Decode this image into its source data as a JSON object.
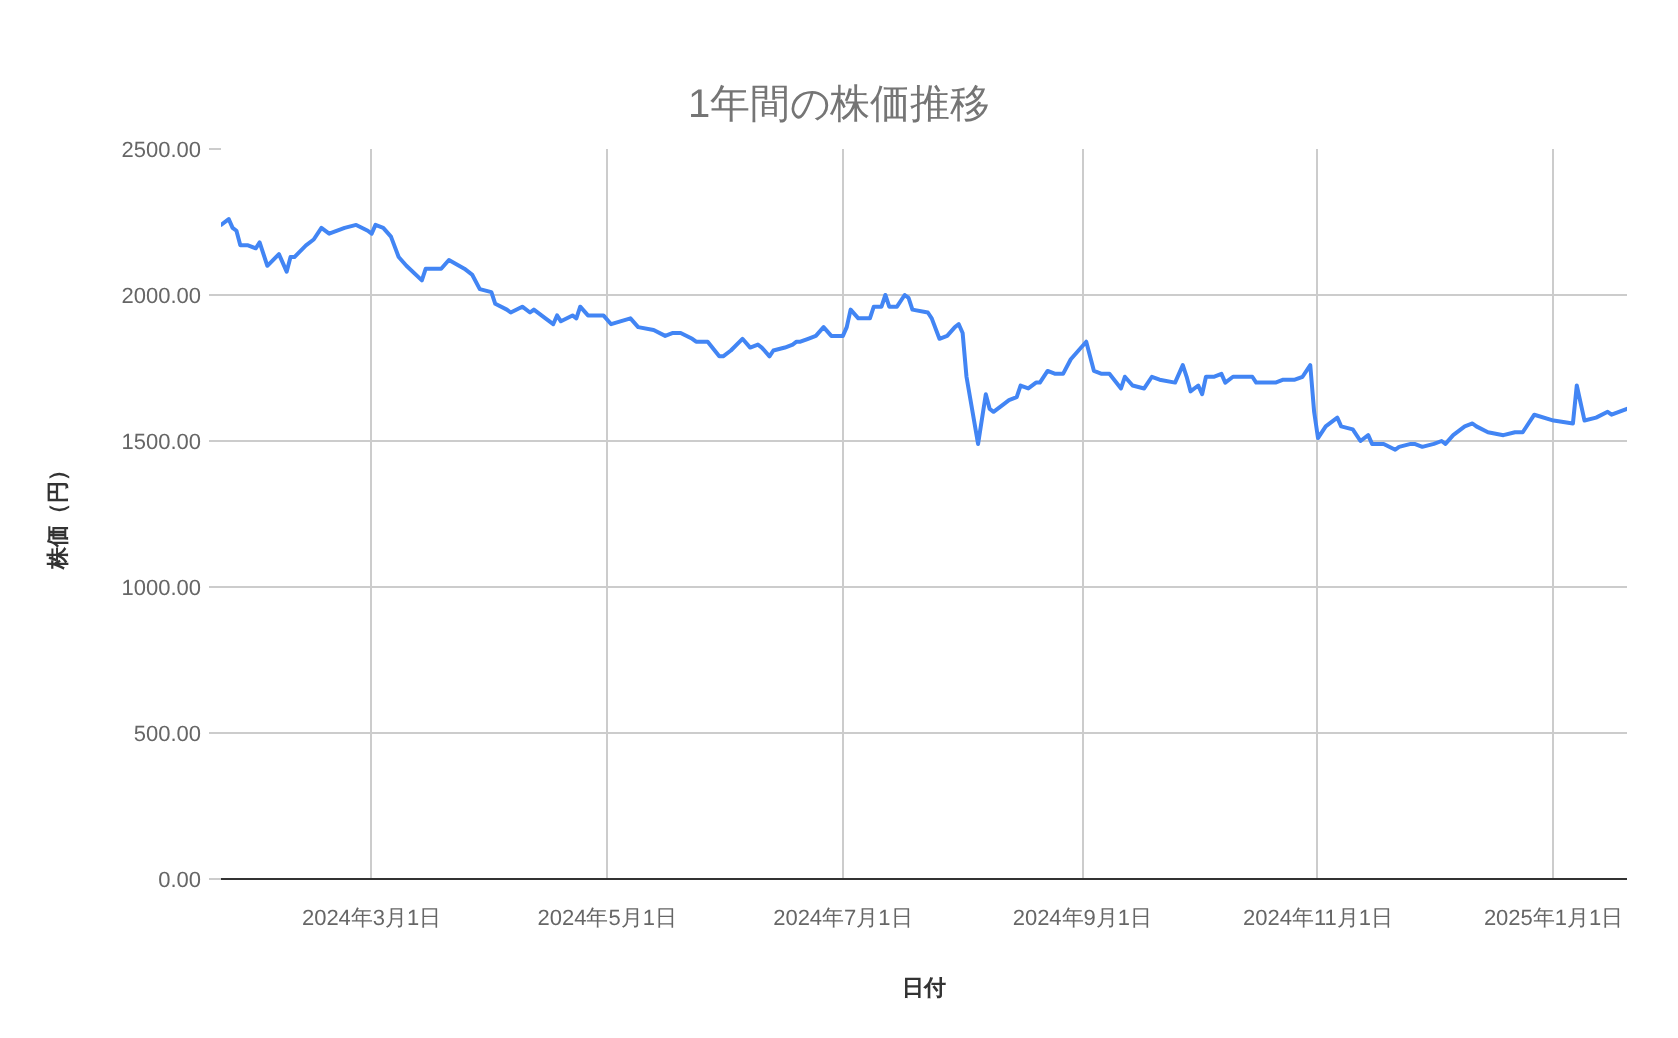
{
  "chart_data": {
    "type": "line",
    "title": "1年間の株価推移",
    "xlabel": "日付",
    "ylabel": "株価（円）",
    "x": [
      "2024-01-22",
      "2024-01-24",
      "2024-01-25",
      "2024-01-26",
      "2024-01-27",
      "2024-01-29",
      "2024-01-31",
      "2024-02-01",
      "2024-02-03",
      "2024-02-06",
      "2024-02-08",
      "2024-02-09",
      "2024-02-10",
      "2024-02-13",
      "2024-02-15",
      "2024-02-17",
      "2024-02-19",
      "2024-02-23",
      "2024-02-26",
      "2024-02-29",
      "2024-03-01",
      "2024-03-02",
      "2024-03-04",
      "2024-03-06",
      "2024-03-08",
      "2024-03-10",
      "2024-03-14",
      "2024-03-15",
      "2024-03-19",
      "2024-03-21",
      "2024-03-25",
      "2024-03-27",
      "2024-03-29",
      "2024-04-01",
      "2024-04-02",
      "2024-04-05",
      "2024-04-06",
      "2024-04-09",
      "2024-04-11",
      "2024-04-12",
      "2024-04-15",
      "2024-04-17",
      "2024-04-18",
      "2024-04-19",
      "2024-04-22",
      "2024-04-23",
      "2024-04-24",
      "2024-04-26",
      "2024-04-30",
      "2024-05-02",
      "2024-05-07",
      "2024-05-09",
      "2024-05-13",
      "2024-05-16",
      "2024-05-18",
      "2024-05-20",
      "2024-05-23",
      "2024-05-24",
      "2024-05-26",
      "2024-05-27",
      "2024-05-30",
      "2024-05-31",
      "2024-06-02",
      "2024-06-05",
      "2024-06-07",
      "2024-06-09",
      "2024-06-10",
      "2024-06-12",
      "2024-06-13",
      "2024-06-16",
      "2024-06-18",
      "2024-06-19",
      "2024-06-20",
      "2024-06-22",
      "2024-06-24",
      "2024-06-26",
      "2024-06-28",
      "2024-07-01",
      "2024-07-02",
      "2024-07-03",
      "2024-07-05",
      "2024-07-08",
      "2024-07-09",
      "2024-07-11",
      "2024-07-12",
      "2024-07-13",
      "2024-07-15",
      "2024-07-17",
      "2024-07-18",
      "2024-07-19",
      "2024-07-23",
      "2024-07-24",
      "2024-07-26",
      "2024-07-28",
      "2024-07-30",
      "2024-07-31",
      "2024-08-01",
      "2024-08-02",
      "2024-08-05",
      "2024-08-07",
      "2024-08-08",
      "2024-08-09",
      "2024-08-12",
      "2024-08-13",
      "2024-08-15",
      "2024-08-16",
      "2024-08-18",
      "2024-08-20",
      "2024-08-21",
      "2024-08-23",
      "2024-08-25",
      "2024-08-27",
      "2024-08-29",
      "2024-08-31",
      "2024-09-02",
      "2024-09-04",
      "2024-09-06",
      "2024-09-08",
      "2024-09-11",
      "2024-09-12",
      "2024-09-14",
      "2024-09-17",
      "2024-09-19",
      "2024-09-21",
      "2024-09-25",
      "2024-09-27",
      "2024-09-28",
      "2024-09-29",
      "2024-10-01",
      "2024-10-02",
      "2024-10-03",
      "2024-10-05",
      "2024-10-07",
      "2024-10-08",
      "2024-10-10",
      "2024-10-15",
      "2024-10-16",
      "2024-10-21",
      "2024-10-23",
      "2024-10-26",
      "2024-10-28",
      "2024-10-30",
      "2024-10-31",
      "2024-11-01",
      "2024-11-03",
      "2024-11-06",
      "2024-11-07",
      "2024-11-10",
      "2024-11-12",
      "2024-11-14",
      "2024-11-15",
      "2024-11-18",
      "2024-11-21",
      "2024-11-22",
      "2024-11-25",
      "2024-11-26",
      "2024-11-28",
      "2024-12-01",
      "2024-12-03",
      "2024-12-04",
      "2024-12-06",
      "2024-12-09",
      "2024-12-11",
      "2024-12-12",
      "2024-12-15",
      "2024-12-19",
      "2024-12-22",
      "2024-12-24",
      "2024-12-27",
      "2025-01-01",
      "2025-01-06",
      "2025-01-07",
      "2025-01-09",
      "2025-01-12",
      "2025-01-15",
      "2025-01-16",
      "2025-01-20"
    ],
    "series": [
      {
        "color": "#4285f4",
        "values": [
          2240,
          2260,
          2230,
          2220,
          2170,
          2170,
          2160,
          2180,
          2100,
          2140,
          2080,
          2130,
          2130,
          2170,
          2190,
          2230,
          2210,
          2230,
          2240,
          2220,
          2210,
          2240,
          2230,
          2200,
          2130,
          2100,
          2050,
          2090,
          2090,
          2120,
          2090,
          2070,
          2020,
          2010,
          1970,
          1950,
          1940,
          1960,
          1940,
          1950,
          1920,
          1900,
          1930,
          1910,
          1930,
          1920,
          1960,
          1930,
          1930,
          1900,
          1920,
          1890,
          1880,
          1860,
          1870,
          1870,
          1850,
          1840,
          1840,
          1840,
          1790,
          1790,
          1810,
          1850,
          1820,
          1830,
          1820,
          1790,
          1810,
          1820,
          1830,
          1840,
          1840,
          1850,
          1860,
          1890,
          1860,
          1860,
          1890,
          1950,
          1920,
          1920,
          1960,
          1960,
          2000,
          1960,
          1960,
          2000,
          1990,
          1950,
          1940,
          1920,
          1850,
          1860,
          1890,
          1900,
          1870,
          1720,
          1490,
          1660,
          1610,
          1600,
          1630,
          1640,
          1650,
          1690,
          1680,
          1700,
          1700,
          1740,
          1730,
          1730,
          1780,
          1810,
          1840,
          1740,
          1730,
          1730,
          1680,
          1720,
          1690,
          1680,
          1720,
          1710,
          1700,
          1760,
          1720,
          1670,
          1690,
          1660,
          1720,
          1720,
          1730,
          1700,
          1720,
          1720,
          1700,
          1700,
          1710,
          1710,
          1720,
          1760,
          1600,
          1510,
          1550,
          1580,
          1550,
          1540,
          1500,
          1520,
          1490,
          1490,
          1470,
          1480,
          1490,
          1490,
          1480,
          1490,
          1500,
          1490,
          1520,
          1550,
          1560,
          1550,
          1530,
          1520,
          1530,
          1530,
          1590,
          1570,
          1560,
          1690,
          1570,
          1580,
          1600,
          1590,
          1610
        ]
      }
    ],
    "xlim": [
      "2024-01-22",
      "2025-01-20"
    ],
    "xticks": [
      {
        "value": "2024-03-01",
        "label": "2024年3月1日"
      },
      {
        "value": "2024-05-01",
        "label": "2024年5月1日"
      },
      {
        "value": "2024-07-01",
        "label": "2024年7月1日"
      },
      {
        "value": "2024-09-01",
        "label": "2024年9月1日"
      },
      {
        "value": "2024-11-01",
        "label": "2024年11月1日"
      },
      {
        "value": "2025-01-01",
        "label": "2025年1月1日"
      }
    ],
    "ylim": [
      0,
      2500
    ],
    "yticks": [
      {
        "value": 0,
        "label": "0.00"
      },
      {
        "value": 500,
        "label": "500.00"
      },
      {
        "value": 1000,
        "label": "1000.00"
      },
      {
        "value": 1500,
        "label": "1500.00"
      },
      {
        "value": 2000,
        "label": "2000.00"
      },
      {
        "value": 2500,
        "label": "2500.00"
      }
    ],
    "grid": true
  }
}
